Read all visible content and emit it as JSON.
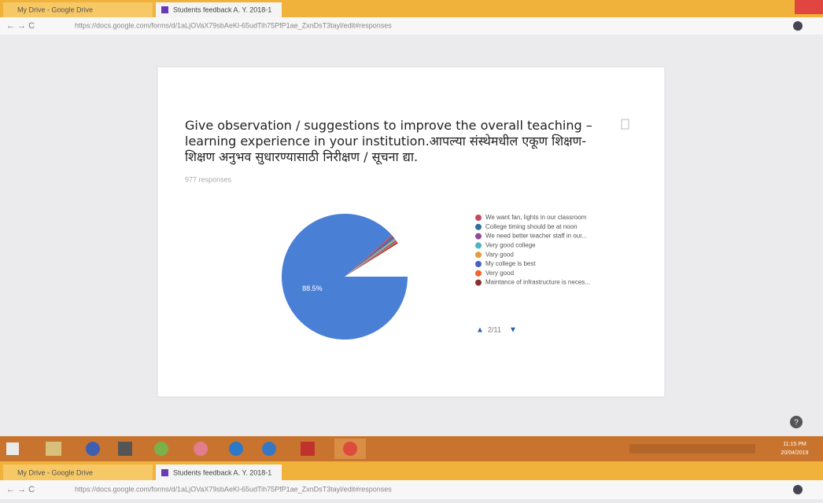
{
  "browser": {
    "tabs": [
      "My Drive - Google Drive",
      "Students feedback A. Y. 2018-1"
    ],
    "url": "https://docs.google.com/forms/d/1aLjOVaX79sbAeKl-65udTih75PfP1ae_ZxnDsT3tayl/edit#responses"
  },
  "card": {
    "title": "Give observation / suggestions to improve the overall teaching – learning experience in your institution.आपल्या संस्थेमधील एकूण शिक्षण-शिक्षण अनुभव सुधारण्यासाठी निरीक्षण / सूचना द्या.",
    "responses": "977 responses",
    "legend_page": "2/11"
  },
  "chart_data": {
    "type": "pie",
    "categories": [
      null,
      "We want fan, lights in our classroom",
      "College timing should be at noon",
      "We need better teacher staff in our...",
      "Very good college",
      "Vary good",
      "My college is best",
      "Very good",
      "Maintance of infrastructure is neces..."
    ],
    "values": [
      88.5,
      0.4,
      0.4,
      0.3,
      0.3,
      0.3,
      0.3,
      0.3,
      0.3
    ],
    "value_labels": [
      "88.5%",
      null,
      null,
      null,
      null,
      null,
      null,
      null,
      null
    ],
    "colors": [
      "#4a7fd6",
      "#c8495c",
      "#2f6f9a",
      "#8e4a93",
      "#4bb5c1",
      "#e69a3c",
      "#4a5fc1",
      "#f4622d",
      "#8b2e2e"
    ]
  },
  "taskbar": {
    "time": "11:15 PM",
    "date": "20/04/2019"
  }
}
